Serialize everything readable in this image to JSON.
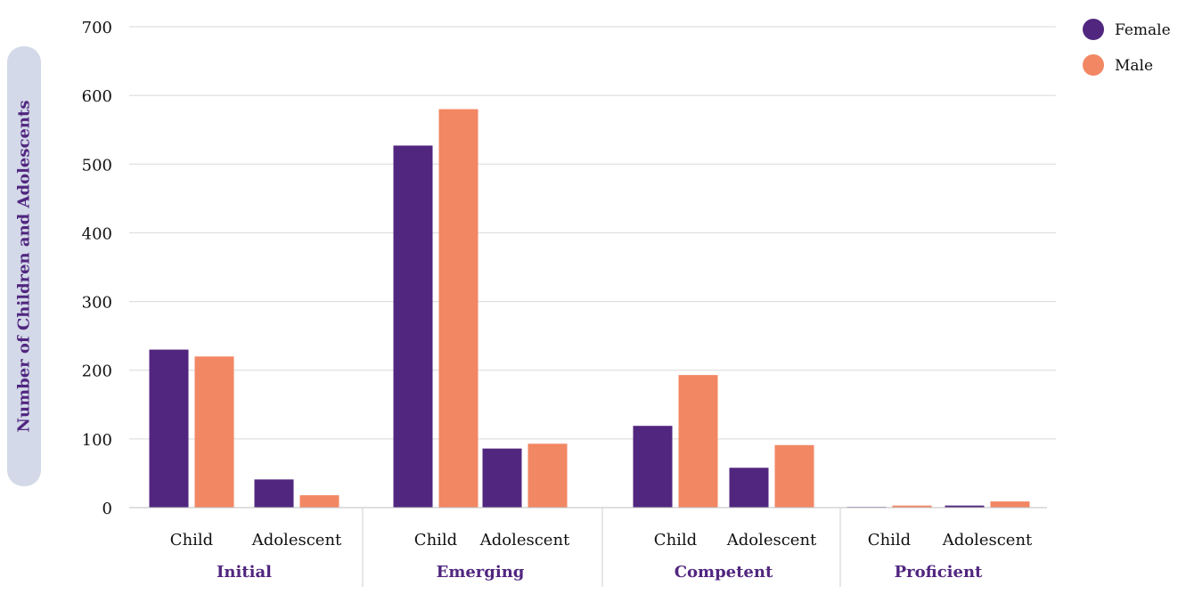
{
  "chart_data": {
    "type": "bar",
    "ylabel": "Number of Children and Adolescents",
    "ylim": [
      0,
      700
    ],
    "yticks": [
      0,
      100,
      200,
      300,
      400,
      500,
      600,
      700
    ],
    "groups": [
      "Initial",
      "Emerging",
      "Competent",
      "Proficient"
    ],
    "subcategories": [
      "Child",
      "Adolescent"
    ],
    "series": [
      {
        "name": "Female",
        "color": "#51267f",
        "values": [
          230,
          41,
          527,
          86,
          119,
          58,
          1,
          3
        ]
      },
      {
        "name": "Male",
        "color": "#f28763",
        "values": [
          220,
          18,
          580,
          93,
          193,
          91,
          3,
          9
        ]
      }
    ],
    "grid": true,
    "legend_position": "top-right"
  },
  "colors": {
    "gridline": "#d9d9d9",
    "group_label": "#51267f",
    "axis_title_bg": "#d3d9e8",
    "axis_title_text": "#51267f"
  }
}
